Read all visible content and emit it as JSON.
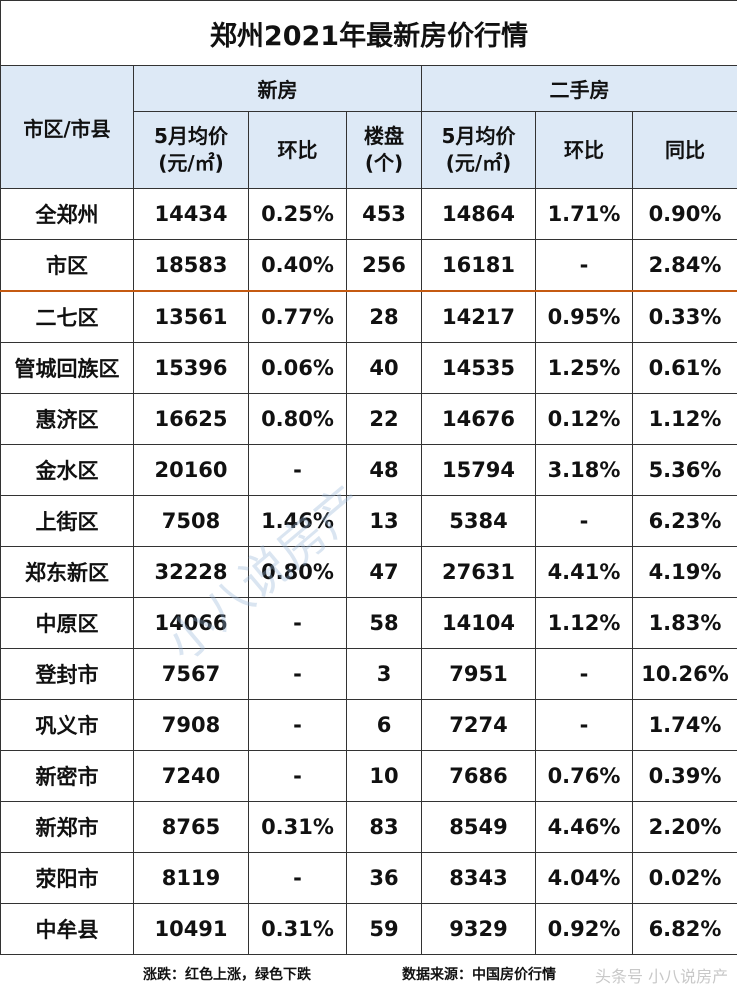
{
  "title": "郑州2021年最新房价行情",
  "header": {
    "city_col": "市区/市县",
    "new_group": "新房",
    "second_group": "二手房",
    "new_price": [
      "5月均价",
      "(元/㎡)"
    ],
    "new_mom": "环比",
    "new_projects": [
      "楼盘",
      "(个)"
    ],
    "second_price": [
      "5月均价",
      "(元/㎡)"
    ],
    "second_mom": "环比",
    "second_yoy": "同比"
  },
  "colors": {
    "up": "#ff1a1a",
    "down": "#13a84a",
    "header_bg": "#dde9f6",
    "separator": "#c55a11"
  },
  "rows": [
    {
      "name": "全郑州",
      "new_price": "14434",
      "new_mom": "0.25%",
      "new_mom_dir": "up",
      "projects": "453",
      "second_price": "14864",
      "second_mom": "1.71%",
      "second_mom_dir": "up",
      "second_yoy": "0.90%",
      "second_yoy_dir": "up"
    },
    {
      "name": "市区",
      "new_price": "18583",
      "new_mom": "0.40%",
      "new_mom_dir": "up",
      "projects": "256",
      "second_price": "16181",
      "second_mom": "-",
      "second_mom_dir": "none",
      "second_yoy": "2.84%",
      "second_yoy_dir": "up"
    },
    {
      "name": "二七区",
      "new_price": "13561",
      "new_mom": "0.77%",
      "new_mom_dir": "up",
      "projects": "28",
      "second_price": "14217",
      "second_mom": "0.95%",
      "second_mom_dir": "down",
      "second_yoy": "0.33%",
      "second_yoy_dir": "up"
    },
    {
      "name": "管城回族区",
      "new_price": "15396",
      "new_mom": "0.06%",
      "new_mom_dir": "up",
      "projects": "40",
      "second_price": "14535",
      "second_mom": "1.25%",
      "second_mom_dir": "down",
      "second_yoy": "0.61%",
      "second_yoy_dir": "down"
    },
    {
      "name": "惠济区",
      "new_price": "16625",
      "new_mom": "0.80%",
      "new_mom_dir": "up",
      "projects": "22",
      "second_price": "14676",
      "second_mom": "0.12%",
      "second_mom_dir": "up",
      "second_yoy": "1.12%",
      "second_yoy_dir": "up"
    },
    {
      "name": "金水区",
      "new_price": "20160",
      "new_mom": "-",
      "new_mom_dir": "none",
      "projects": "48",
      "second_price": "15794",
      "second_mom": "3.18%",
      "second_mom_dir": "down",
      "second_yoy": "5.36%",
      "second_yoy_dir": "up"
    },
    {
      "name": "上街区",
      "new_price": "7508",
      "new_mom": "1.46%",
      "new_mom_dir": "up",
      "projects": "13",
      "second_price": "5384",
      "second_mom": "-",
      "second_mom_dir": "none",
      "second_yoy": "6.23%",
      "second_yoy_dir": "down"
    },
    {
      "name": "郑东新区",
      "new_price": "32228",
      "new_mom": "0.80%",
      "new_mom_dir": "up",
      "projects": "47",
      "second_price": "27631",
      "second_mom": "4.41%",
      "second_mom_dir": "up",
      "second_yoy": "4.19%",
      "second_yoy_dir": "up"
    },
    {
      "name": "中原区",
      "new_price": "14066",
      "new_mom": "-",
      "new_mom_dir": "none",
      "projects": "58",
      "second_price": "14104",
      "second_mom": "1.12%",
      "second_mom_dir": "down",
      "second_yoy": "1.83%",
      "second_yoy_dir": "up"
    },
    {
      "name": "登封市",
      "new_price": "7567",
      "new_mom": "-",
      "new_mom_dir": "none",
      "projects": "3",
      "second_price": "7951",
      "second_mom": "-",
      "second_mom_dir": "none",
      "second_yoy": "10.26%",
      "second_yoy_dir": "up"
    },
    {
      "name": "巩义市",
      "new_price": "7908",
      "new_mom": "-",
      "new_mom_dir": "none",
      "projects": "6",
      "second_price": "7274",
      "second_mom": "-",
      "second_mom_dir": "none",
      "second_yoy": "1.74%",
      "second_yoy_dir": "down"
    },
    {
      "name": "新密市",
      "new_price": "7240",
      "new_mom": "-",
      "new_mom_dir": "none",
      "projects": "10",
      "second_price": "7686",
      "second_mom": "0.76%",
      "second_mom_dir": "down",
      "second_yoy": "0.39%",
      "second_yoy_dir": "down"
    },
    {
      "name": "新郑市",
      "new_price": "8765",
      "new_mom": "0.31%",
      "new_mom_dir": "down",
      "projects": "83",
      "second_price": "8549",
      "second_mom": "4.46%",
      "second_mom_dir": "up",
      "second_yoy": "2.20%",
      "second_yoy_dir": "up"
    },
    {
      "name": "荥阳市",
      "new_price": "8119",
      "new_mom": "-",
      "new_mom_dir": "none",
      "projects": "36",
      "second_price": "8343",
      "second_mom": "4.04%",
      "second_mom_dir": "down",
      "second_yoy": "0.02%",
      "second_yoy_dir": "up"
    },
    {
      "name": "中牟县",
      "new_price": "10491",
      "new_mom": "0.31%",
      "new_mom_dir": "down",
      "projects": "59",
      "second_price": "9329",
      "second_mom": "0.92%",
      "second_mom_dir": "up",
      "second_yoy": "6.82%",
      "second_yoy_dir": "down"
    }
  ],
  "footer": {
    "legend": "涨跌：红色上涨，绿色下跌",
    "source": "数据来源：中国房价行情",
    "watermark_tag": "头条号 小八说房产"
  },
  "watermark": "小八说房产"
}
